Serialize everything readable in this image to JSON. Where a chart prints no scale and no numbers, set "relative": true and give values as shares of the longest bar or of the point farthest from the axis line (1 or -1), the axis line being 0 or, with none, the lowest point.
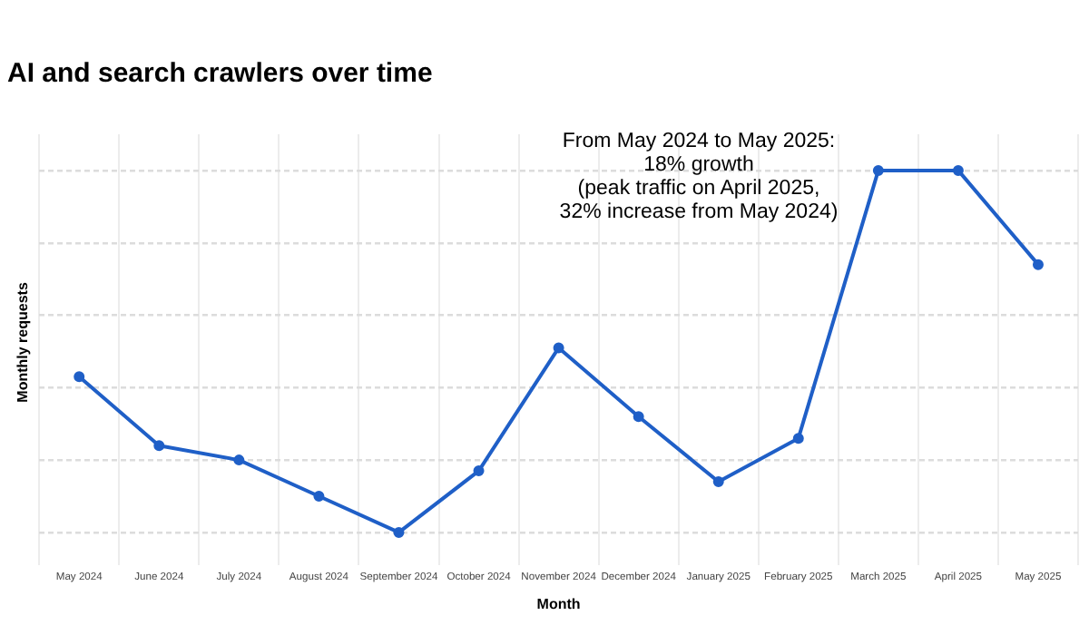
{
  "chart_data": {
    "type": "line",
    "title": "AI and search crawlers over time",
    "xlabel": "Month",
    "ylabel": "Monthly requests",
    "categories": [
      "May 2024",
      "June 2024",
      "July 2024",
      "August 2024",
      "September 2024",
      "October 2024",
      "November 2024",
      "December 2024",
      "January 2025",
      "February 2025",
      "March 2025",
      "April 2025",
      "May 2025"
    ],
    "series": [
      {
        "color": "#1f5fc7",
        "values": [
          0.43,
          0.24,
          0.2,
          0.1,
          0,
          0.17,
          0.51,
          0.32,
          0.14,
          0.26,
          1,
          1,
          0.74
        ]
      }
    ],
    "relative": true,
    "grid": true,
    "legend": false,
    "marker": "circle",
    "line_style": "solid",
    "annotations": [
      "From May 2024 to May 2025:\n18% growth\n(peak traffic on April 2025,\n32% increase from May 2024)"
    ]
  }
}
